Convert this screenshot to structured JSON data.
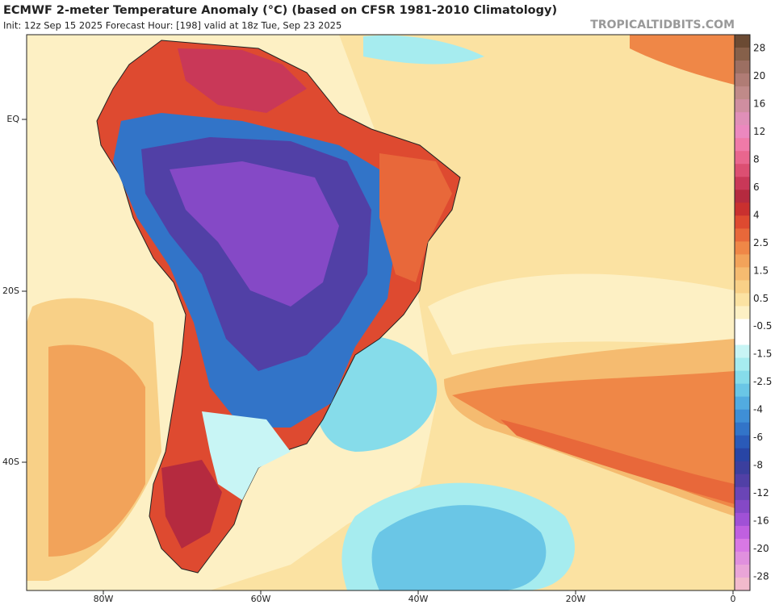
{
  "header": {
    "title": "ECMWF 2-meter Temperature Anomaly (°C) (based on CFSR 1981-2010 Climatology)",
    "subtitle": "Init: 12z Sep 15 2025   Forecast Hour: [198]   valid at 18z Tue, Sep 23 2025",
    "watermark": "TROPICALTIDBITS.COM"
  },
  "map": {
    "lat_labels": [
      "EQ",
      "20S",
      "40S"
    ],
    "lon_labels": [
      "80W",
      "60W",
      "40W",
      "20W",
      "0"
    ]
  },
  "colorbar": {
    "labels": [
      "28",
      "20",
      "16",
      "12",
      "8",
      "6",
      "4",
      "2.5",
      "1.5",
      "0.5",
      "-0.5",
      "-1.5",
      "-2.5",
      "-4",
      "-6",
      "-8",
      "-12",
      "-16",
      "-20",
      "-28"
    ],
    "colors": [
      "#6b4a33",
      "#86604a",
      "#9c6f62",
      "#b07c75",
      "#c08a89",
      "#cf8ea0",
      "#e08fb8",
      "#ec88bf",
      "#f07aa8",
      "#e9668e",
      "#dc4f72",
      "#c93858",
      "#b52a3f",
      "#c9302f",
      "#de4a30",
      "#e8683a",
      "#ef8747",
      "#f2a35a",
      "#f5bb70",
      "#f8d087",
      "#fbe2a2",
      "#fdf0c4",
      "#ffffff",
      "#ffffff",
      "#c8f5f5",
      "#a6ecef",
      "#86dcea",
      "#6ac6e6",
      "#52abe0",
      "#3f8fd6",
      "#3274c8",
      "#2a5ab8",
      "#2845a5",
      "#3b3f9e",
      "#5140a6",
      "#6a45b6",
      "#8549c6",
      "#a051d6",
      "#c060e0",
      "#d878e4",
      "#e090de",
      "#eaa5d8",
      "#f2bacc"
    ]
  }
}
